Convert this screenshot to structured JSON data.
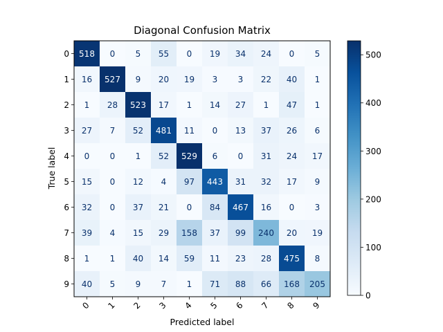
{
  "chart_data": {
    "type": "heatmap",
    "title": "Diagonal Confusion Matrix",
    "xlabel": "Predicted label",
    "ylabel": "True label",
    "x_ticks": [
      "0",
      "1",
      "2",
      "3",
      "4",
      "5",
      "6",
      "7",
      "8",
      "9"
    ],
    "y_ticks": [
      "0",
      "1",
      "2",
      "3",
      "4",
      "5",
      "6",
      "7",
      "8",
      "9"
    ],
    "matrix": [
      [
        518,
        0,
        5,
        55,
        0,
        19,
        34,
        24,
        0,
        5
      ],
      [
        16,
        527,
        9,
        20,
        19,
        3,
        3,
        22,
        40,
        1
      ],
      [
        1,
        28,
        523,
        17,
        1,
        14,
        27,
        1,
        47,
        1
      ],
      [
        27,
        7,
        52,
        481,
        11,
        0,
        13,
        37,
        26,
        6
      ],
      [
        0,
        0,
        1,
        52,
        529,
        6,
        0,
        31,
        24,
        17
      ],
      [
        15,
        0,
        12,
        4,
        97,
        443,
        31,
        32,
        17,
        9
      ],
      [
        32,
        0,
        37,
        21,
        0,
        84,
        467,
        16,
        0,
        3
      ],
      [
        39,
        4,
        15,
        29,
        158,
        37,
        99,
        240,
        20,
        19
      ],
      [
        1,
        1,
        40,
        14,
        59,
        11,
        23,
        28,
        475,
        8
      ],
      [
        40,
        5,
        9,
        7,
        1,
        71,
        88,
        66,
        168,
        205
      ]
    ],
    "colormap": "Blues",
    "vmin": 0,
    "vmax": 529,
    "colorbar_ticks": [
      0,
      100,
      200,
      300,
      400,
      500
    ],
    "x_tick_rotation": 45
  }
}
